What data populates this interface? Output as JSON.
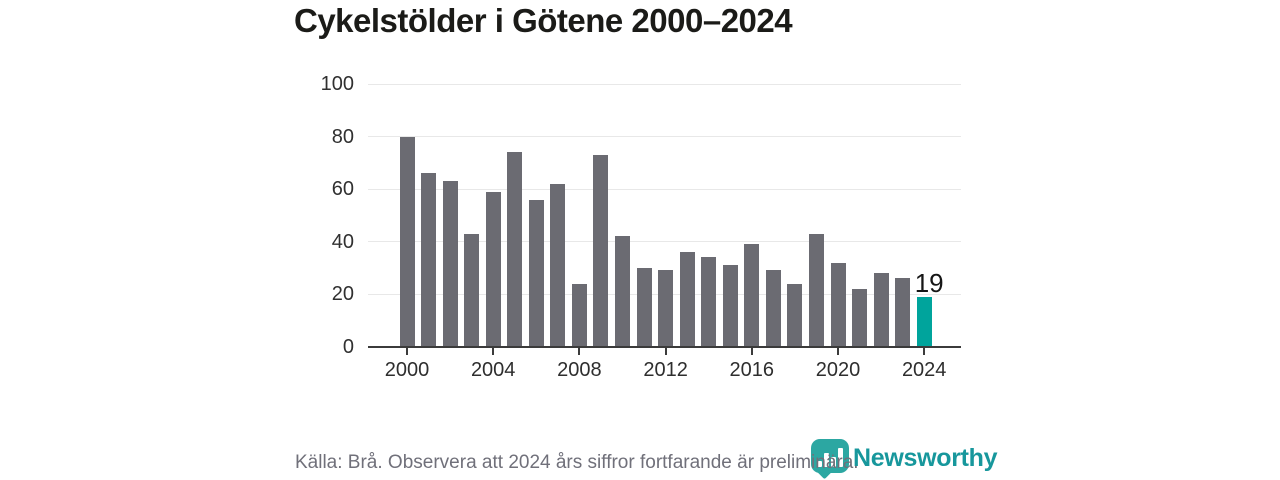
{
  "title": "Cykelstölder i Götene 2000–2024",
  "chart_data": {
    "type": "bar",
    "title": "Cykelstölder i Götene 2000–2024",
    "categories": [
      2000,
      2001,
      2002,
      2003,
      2004,
      2005,
      2006,
      2007,
      2008,
      2009,
      2010,
      2011,
      2012,
      2013,
      2014,
      2015,
      2016,
      2017,
      2018,
      2019,
      2020,
      2021,
      2022,
      2023,
      2024
    ],
    "values": [
      80,
      66,
      63,
      43,
      59,
      74,
      56,
      62,
      24,
      73,
      42,
      30,
      29,
      36,
      34,
      31,
      39,
      29,
      24,
      43,
      32,
      22,
      28,
      26,
      19
    ],
    "xlabel": "",
    "ylabel": "",
    "ylim": [
      0,
      100
    ],
    "yticks": [
      0,
      20,
      40,
      60,
      80,
      100
    ],
    "xticks": [
      2000,
      2004,
      2008,
      2012,
      2016,
      2020,
      2024
    ],
    "grid": "horizontal",
    "legend": "none",
    "bar_color": "#6b6b72",
    "highlight_year": 2024,
    "highlight_color": "#00a49c",
    "value_labels": [
      {
        "year": 2024,
        "text": "19"
      }
    ]
  },
  "footer": {
    "source_note": "Källa: Brå. Observera att 2024 års siffror fortfarande är preliminära."
  },
  "logo": {
    "brand": "Newsworthy",
    "icon": "newsworthy-bubble-barchart-icon",
    "brand_color": "#17979c"
  }
}
